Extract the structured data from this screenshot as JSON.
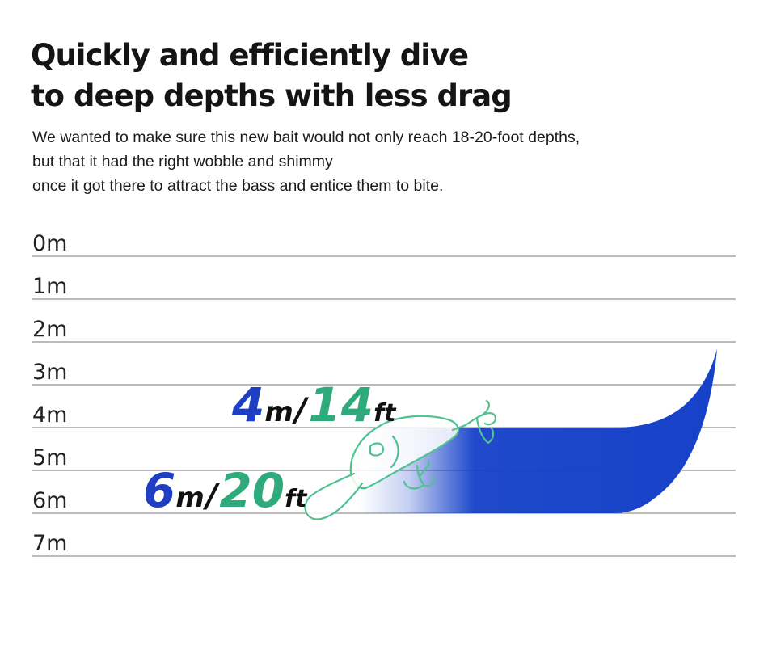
{
  "title_lines": [
    "Quickly and efficiently dive",
    "to deep depths with less drag"
  ],
  "subtitle_lines": [
    "We wanted to make sure this new bait would not only reach 18-20-foot depths,",
    "but that it had the right wobble and shimmy",
    "once it got there to attract the bass and entice them to bite."
  ],
  "depth_scale": [
    "0m",
    "1m",
    "2m",
    "3m",
    "4m",
    "5m",
    "6m",
    "7m"
  ],
  "callouts": [
    {
      "metric_value": "4",
      "metric_unit": "m",
      "separator": "/",
      "imperial_value": "14",
      "imperial_unit": "ft"
    },
    {
      "metric_value": "6",
      "metric_unit": "m",
      "separator": "/",
      "imperial_value": "20",
      "imperial_unit": "ft"
    }
  ],
  "colors": {
    "metric": "#1e3fc4",
    "imperial": "#2faa7c",
    "dive_curve": "#1440c8",
    "lure_outline": "#4fc28f"
  }
}
